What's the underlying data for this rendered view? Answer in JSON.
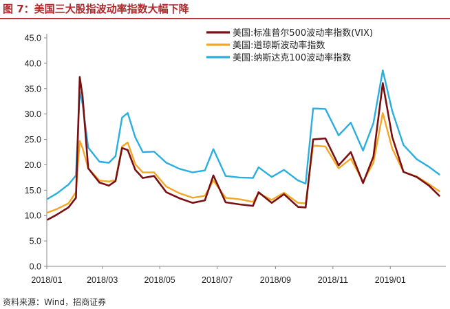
{
  "header": {
    "title": "图 7：美国三大股指波动率指数大幅下降"
  },
  "source": "资料来源：Wind，招商证券",
  "chart_data": {
    "type": "line",
    "title": "",
    "xlabel": "",
    "ylabel": "",
    "ylim": [
      0,
      45
    ],
    "yticks": [
      "0.0",
      "5.0",
      "10.0",
      "15.0",
      "20.0",
      "25.0",
      "30.0",
      "35.0",
      "40.0",
      "45.0"
    ],
    "xticks": [
      "2018/01",
      "2018/03",
      "2018/05",
      "2018/07",
      "2018/09",
      "2018/11",
      "2019/01"
    ],
    "grid": false,
    "legend_position": "top-right",
    "x": [
      "2018/01/02",
      "2018/01/12",
      "2018/01/24",
      "2018/02/01",
      "2018/02/05",
      "2018/02/08",
      "2018/02/14",
      "2018/02/26",
      "2018/03/08",
      "2018/03/15",
      "2018/03/22",
      "2018/03/28",
      "2018/04/05",
      "2018/04/13",
      "2018/04/25",
      "2018/05/08",
      "2018/05/22",
      "2018/06/05",
      "2018/06/18",
      "2018/06/27",
      "2018/07/10",
      "2018/07/25",
      "2018/08/08",
      "2018/08/14",
      "2018/08/28",
      "2018/09/10",
      "2018/09/25",
      "2018/10/03",
      "2018/10/11",
      "2018/10/24",
      "2018/11/07",
      "2018/11/20",
      "2018/12/03",
      "2018/12/14",
      "2018/12/24",
      "2019/01/03",
      "2019/01/15",
      "2019/01/29",
      "2019/02/11",
      "2019/02/22"
    ],
    "series": [
      {
        "name": "美国:标准普尔500波动率指数(VIX)",
        "color": "#7a0f12",
        "values": [
          9.2,
          10.2,
          11.6,
          13.5,
          37.3,
          33.5,
          19.3,
          16.5,
          15.9,
          16.8,
          23.3,
          22.9,
          19.0,
          17.4,
          17.8,
          14.6,
          13.4,
          12.5,
          13.0,
          17.9,
          12.6,
          12.2,
          11.9,
          14.6,
          12.5,
          14.2,
          11.7,
          11.6,
          25.0,
          25.2,
          19.9,
          22.5,
          16.4,
          21.6,
          36.1,
          25.5,
          18.6,
          17.6,
          15.9,
          13.9
        ]
      },
      {
        "name": "美国:道琼斯波动率指数",
        "color": "#f5a623",
        "values": [
          10.6,
          11.3,
          12.4,
          14.6,
          24.7,
          23.3,
          19.3,
          16.9,
          16.7,
          17.0,
          23.6,
          24.4,
          20.1,
          18.5,
          18.5,
          15.7,
          14.4,
          13.5,
          13.9,
          16.9,
          13.5,
          13.2,
          12.7,
          14.4,
          13.1,
          14.5,
          12.5,
          12.4,
          23.8,
          23.6,
          19.3,
          21.2,
          16.7,
          20.4,
          30.2,
          23.2,
          18.6,
          17.7,
          16.2,
          14.8
        ]
      },
      {
        "name": "美国:纳斯达克100波动率指数",
        "color": "#29aee0",
        "values": [
          13.3,
          14.4,
          16.1,
          17.9,
          34.4,
          32.0,
          23.4,
          20.6,
          20.4,
          21.7,
          29.3,
          30.2,
          25.4,
          22.5,
          22.6,
          20.4,
          19.2,
          18.5,
          18.9,
          23.1,
          17.8,
          17.5,
          17.4,
          19.5,
          17.6,
          19.0,
          16.9,
          16.3,
          31.1,
          31.0,
          25.8,
          28.3,
          22.8,
          28.2,
          38.6,
          30.6,
          23.9,
          21.1,
          19.6,
          18.1
        ]
      }
    ]
  }
}
